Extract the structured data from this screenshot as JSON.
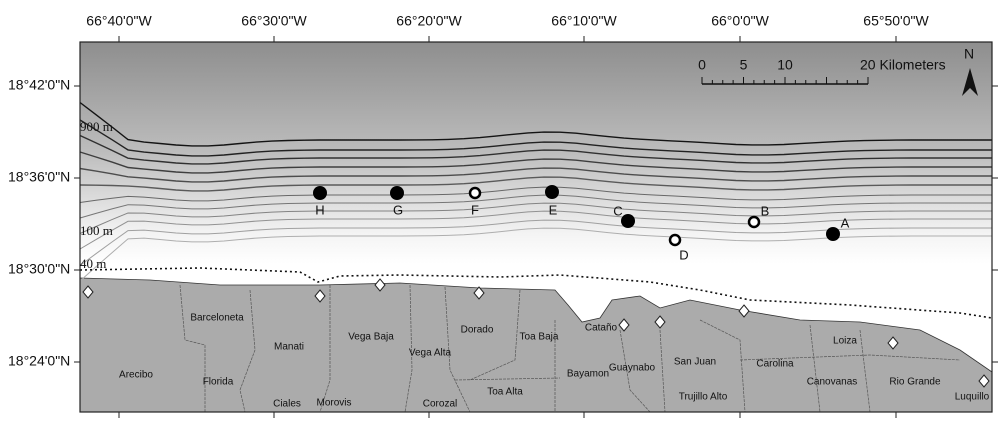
{
  "map": {
    "lon_labels": [
      "66°40'0\"W",
      "66°30'0\"W",
      "66°20'0\"W",
      "66°10'0\"W",
      "66°0'0\"W",
      "65°50'0\"W"
    ],
    "lat_labels": [
      "18°42'0\"N",
      "18°36'0\"N",
      "18°30'0\"N",
      "18°24'0\"N"
    ],
    "contours": [
      "900 m",
      "100 m",
      "40 m"
    ],
    "stations": [
      {
        "label": "H",
        "marker": "filled"
      },
      {
        "label": "G",
        "marker": "filled"
      },
      {
        "label": "F",
        "marker": "open"
      },
      {
        "label": "E",
        "marker": "filled"
      },
      {
        "label": "C",
        "marker": "filled"
      },
      {
        "label": "D",
        "marker": "open"
      },
      {
        "label": "B",
        "marker": "open"
      },
      {
        "label": "A",
        "marker": "filled"
      }
    ],
    "scale": {
      "ticks": [
        0,
        5,
        10
      ],
      "end": "20 Kilometers"
    },
    "north": "N",
    "places": [
      "Barceloneta",
      "Arecibo",
      "Florida",
      "Ciales",
      "Manati",
      "Morovis",
      "Vega Baja",
      "Vega Alta",
      "Dorado",
      "Corozal",
      "Toa Baja",
      "Toa Alta",
      "Cataño",
      "Bayamon",
      "Guaynabo",
      "San Juan",
      "Trujillo Alto",
      "Carolina",
      "Canovanas",
      "Loiza",
      "Rio Grande",
      "Luquillo"
    ]
  }
}
